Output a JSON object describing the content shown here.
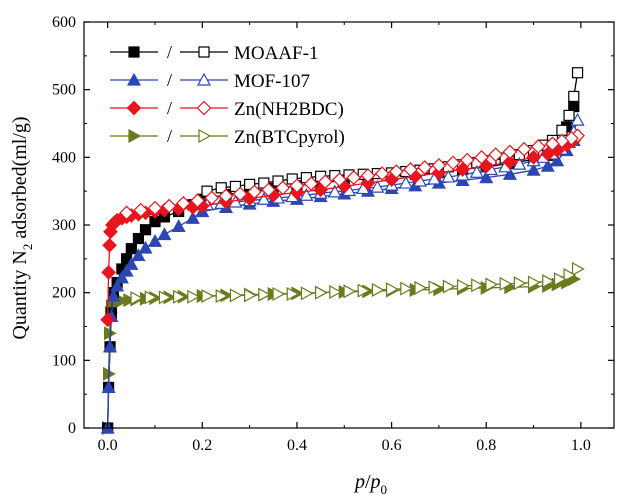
{
  "chart_data": {
    "type": "scatter",
    "xlabel": {
      "p1": "p",
      "slash": "/",
      "p2": "p",
      "sub": "0"
    },
    "ylabel": {
      "pre": "Quantity N",
      "sub": "2",
      "post": " adsorbed(ml/g)"
    },
    "xlim": [
      -0.05,
      1.07
    ],
    "ylim": [
      0,
      600
    ],
    "xticks": [
      "0.0",
      "0.2",
      "0.4",
      "0.6",
      "0.8",
      "1.0"
    ],
    "yticks": [
      "0",
      "100",
      "200",
      "300",
      "400",
      "500",
      "600"
    ],
    "legend_position": "top-left",
    "legend_separator": "/",
    "series": [
      {
        "name": "MOAAF-1",
        "color": "#000000",
        "marker": "square",
        "adsorption": {
          "x": [
            0.0,
            0.002,
            0.005,
            0.008,
            0.012,
            0.02,
            0.03,
            0.04,
            0.05,
            0.065,
            0.08,
            0.1,
            0.12,
            0.15,
            0.18,
            0.2,
            0.25,
            0.3,
            0.35,
            0.4,
            0.45,
            0.5,
            0.55,
            0.6,
            0.65,
            0.7,
            0.75,
            0.8,
            0.85,
            0.9,
            0.93,
            0.95,
            0.97,
            0.985
          ],
          "y": [
            0,
            60,
            120,
            170,
            200,
            215,
            235,
            250,
            265,
            280,
            293,
            305,
            312,
            320,
            330,
            338,
            345,
            350,
            354,
            358,
            362,
            366,
            369,
            372,
            375,
            378,
            382,
            386,
            391,
            397,
            403,
            415,
            445,
            475
          ]
        },
        "desorption": {
          "x": [
            0.993,
            0.985,
            0.975,
            0.96,
            0.94,
            0.92,
            0.9,
            0.87,
            0.84,
            0.81,
            0.78,
            0.75,
            0.72,
            0.69,
            0.66,
            0.63,
            0.6,
            0.57,
            0.54,
            0.51,
            0.48,
            0.45,
            0.42,
            0.39,
            0.36,
            0.33,
            0.3,
            0.27,
            0.24,
            0.21
          ],
          "y": [
            525,
            490,
            462,
            440,
            425,
            418,
            410,
            404,
            399,
            395,
            392,
            389,
            386,
            383,
            381,
            379,
            377,
            376,
            375,
            374,
            373,
            372,
            370,
            368,
            365,
            362,
            360,
            357,
            355,
            350
          ]
        }
      },
      {
        "name": "MOF-107",
        "color": "#2c46b4",
        "marker": "triangle-up",
        "adsorption": {
          "x": [
            0.0,
            0.002,
            0.005,
            0.008,
            0.012,
            0.02,
            0.03,
            0.04,
            0.05,
            0.065,
            0.08,
            0.1,
            0.12,
            0.15,
            0.18,
            0.2,
            0.25,
            0.3,
            0.35,
            0.4,
            0.45,
            0.5,
            0.55,
            0.6,
            0.65,
            0.7,
            0.75,
            0.8,
            0.85,
            0.9,
            0.93,
            0.95,
            0.97,
            0.985
          ],
          "y": [
            0,
            60,
            120,
            165,
            195,
            210,
            222,
            232,
            242,
            255,
            266,
            276,
            286,
            298,
            310,
            320,
            326,
            331,
            335,
            338,
            342,
            346,
            350,
            354,
            358,
            362,
            366,
            370,
            375,
            381,
            387,
            395,
            410,
            425
          ]
        },
        "desorption": {
          "x": [
            0.993,
            0.985,
            0.975,
            0.96,
            0.94,
            0.92,
            0.9,
            0.87,
            0.84,
            0.81,
            0.78,
            0.75,
            0.72,
            0.69,
            0.66,
            0.63,
            0.6,
            0.57,
            0.54,
            0.51,
            0.48,
            0.45,
            0.42,
            0.39,
            0.36,
            0.33,
            0.3,
            0.27,
            0.24,
            0.21
          ],
          "y": [
            455,
            438,
            422,
            412,
            405,
            400,
            395,
            390,
            386,
            382,
            378,
            374,
            371,
            368,
            365,
            362,
            359,
            356,
            354,
            351,
            349,
            347,
            344,
            342,
            340,
            338,
            336,
            334,
            332,
            330
          ]
        }
      },
      {
        "name": "Zn(NH2BDC)",
        "color": "#e8141e",
        "marker": "diamond",
        "adsorption": {
          "x": [
            0.0,
            0.002,
            0.004,
            0.006,
            0.01,
            0.015,
            0.02,
            0.03,
            0.04,
            0.05,
            0.065,
            0.08,
            0.1,
            0.12,
            0.15,
            0.18,
            0.2,
            0.25,
            0.3,
            0.35,
            0.4,
            0.45,
            0.5,
            0.55,
            0.6,
            0.65,
            0.7,
            0.75,
            0.8,
            0.85,
            0.9,
            0.93,
            0.95,
            0.97,
            0.985
          ],
          "y": [
            160,
            230,
            270,
            290,
            300,
            304,
            307,
            310,
            312,
            314,
            316,
            318,
            320,
            322,
            324,
            326,
            328,
            334,
            339,
            344,
            348,
            352,
            357,
            362,
            367,
            372,
            377,
            382,
            387,
            393,
            400,
            405,
            410,
            418,
            425
          ]
        },
        "desorption": {
          "x": [
            0.993,
            0.98,
            0.96,
            0.94,
            0.91,
            0.88,
            0.85,
            0.82,
            0.79,
            0.76,
            0.73,
            0.7,
            0.67,
            0.64,
            0.61,
            0.58,
            0.55,
            0.52,
            0.49,
            0.46,
            0.43,
            0.4,
            0.37,
            0.34,
            0.31,
            0.28,
            0.25,
            0.22,
            0.19,
            0.16,
            0.13,
            0.1,
            0.07,
            0.04
          ],
          "y": [
            432,
            428,
            424,
            420,
            416,
            412,
            408,
            404,
            400,
            396,
            392,
            388,
            385,
            382,
            379,
            376,
            373,
            370,
            367,
            364,
            361,
            358,
            355,
            352,
            349,
            346,
            343,
            340,
            336,
            332,
            328,
            325,
            322,
            318
          ]
        }
      },
      {
        "name": "Zn(BTCpyrol)",
        "color": "#6b7a1e",
        "marker": "triangle-right",
        "adsorption": {
          "x": [
            0.0,
            0.002,
            0.004,
            0.006,
            0.008,
            0.012,
            0.02,
            0.03,
            0.045,
            0.06,
            0.08,
            0.1,
            0.13,
            0.16,
            0.2,
            0.25,
            0.3,
            0.35,
            0.4,
            0.45,
            0.5,
            0.55,
            0.6,
            0.65,
            0.7,
            0.75,
            0.8,
            0.85,
            0.9,
            0.93,
            0.95,
            0.97,
            0.985
          ],
          "y": [
            0,
            80,
            140,
            170,
            180,
            184,
            186,
            188,
            189,
            190,
            191,
            192,
            193,
            194,
            195,
            196,
            197,
            198,
            199,
            200,
            201,
            202,
            203,
            204,
            205,
            206,
            207,
            208,
            209,
            210,
            212,
            215,
            220
          ]
        },
        "desorption": {
          "x": [
            0.993,
            0.975,
            0.955,
            0.93,
            0.9,
            0.87,
            0.84,
            0.81,
            0.78,
            0.75,
            0.72,
            0.69,
            0.66,
            0.63,
            0.6,
            0.57,
            0.54,
            0.51,
            0.48,
            0.45,
            0.42,
            0.39,
            0.36,
            0.33,
            0.3,
            0.27,
            0.24,
            0.21,
            0.18,
            0.15,
            0.12,
            0.09,
            0.06
          ],
          "y": [
            235,
            226,
            220,
            217,
            215,
            214,
            213,
            212,
            211,
            210,
            209,
            208,
            207,
            206,
            205,
            204,
            203,
            202,
            201,
            200,
            199,
            198,
            198,
            197,
            196,
            196,
            195,
            195,
            194,
            194,
            193,
            193,
            192
          ]
        }
      }
    ]
  }
}
